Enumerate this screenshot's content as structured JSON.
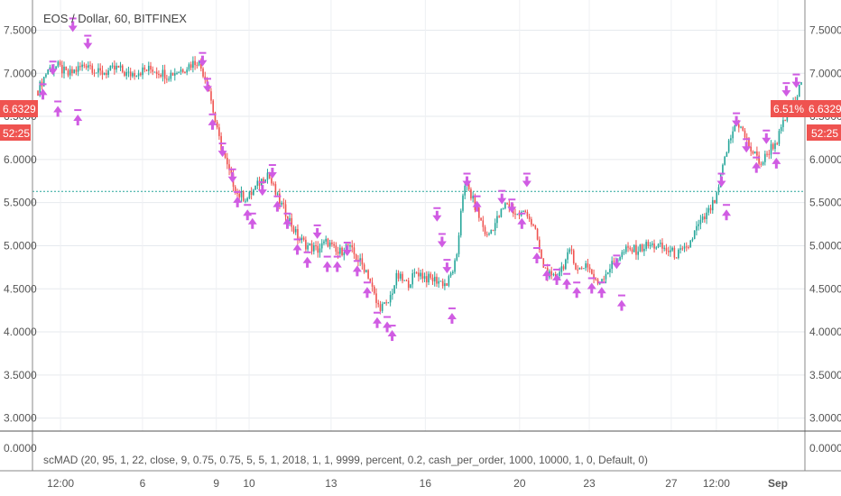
{
  "chart_data": {
    "type": "candlestick",
    "title": "EOS / Dollar, 60, BITFINEX",
    "indicator_label": "scMAD (20, 95, 1, 22, close, 9, 0.75, 0.75, 5, 5, 1, 2018, 1, 1, 9999, percent, 0.2, cash_per_order, 1000, 10000, 1, 0, Default, 0)",
    "y_ticks": [
      "7.5000",
      "7.0000",
      "6.5000",
      "6.0000",
      "5.5000",
      "5.0000",
      "4.5000",
      "4.0000",
      "3.5000",
      "3.0000"
    ],
    "indicator_tick": "0.0000",
    "x_ticks": [
      "12:00",
      "6",
      "9",
      "10",
      "13",
      "16",
      "20",
      "23",
      "27",
      "12:00",
      "Sep"
    ],
    "ylim": [
      2.85,
      7.85
    ],
    "last_price": "6.6329",
    "countdown": "52:25",
    "strategy_pct": "6.51%",
    "dotted_level": 5.63,
    "grid": true,
    "colors": {
      "up": "#26a69a",
      "down": "#ef5350",
      "signal": "#d05ce3",
      "tag": "#ef5350",
      "level": "#26a69a"
    },
    "price_path": [
      [
        0,
        6.8
      ],
      [
        2,
        7.05
      ],
      [
        4,
        7.08
      ],
      [
        6,
        6.98
      ],
      [
        8,
        7.05
      ],
      [
        10,
        7.12
      ],
      [
        12,
        7.0
      ],
      [
        14,
        7.02
      ],
      [
        16,
        7.06
      ],
      [
        18,
        6.98
      ],
      [
        20,
        7.02
      ],
      [
        23,
        7.05
      ],
      [
        26,
        6.98
      ],
      [
        29,
        7.05
      ],
      [
        32,
        7.15
      ],
      [
        34,
        6.9
      ],
      [
        36,
        6.3
      ],
      [
        38,
        5.9
      ],
      [
        40,
        5.6
      ],
      [
        42,
        5.55
      ],
      [
        44,
        5.7
      ],
      [
        46,
        5.85
      ],
      [
        48,
        5.55
      ],
      [
        50,
        5.35
      ],
      [
        52,
        5.1
      ],
      [
        54,
        5.0
      ],
      [
        56,
        4.95
      ],
      [
        58,
        5.05
      ],
      [
        60,
        4.9
      ],
      [
        62,
        5.0
      ],
      [
        64,
        4.85
      ],
      [
        66,
        4.7
      ],
      [
        67,
        4.5
      ],
      [
        68,
        4.3
      ],
      [
        70,
        4.3
      ],
      [
        72,
        4.65
      ],
      [
        74,
        4.55
      ],
      [
        76,
        4.7
      ],
      [
        78,
        4.62
      ],
      [
        80,
        4.6
      ],
      [
        82,
        4.55
      ],
      [
        84,
        4.85
      ],
      [
        85,
        5.6
      ],
      [
        86,
        5.7
      ],
      [
        88,
        5.4
      ],
      [
        90,
        5.1
      ],
      [
        92,
        5.3
      ],
      [
        94,
        5.5
      ],
      [
        96,
        5.35
      ],
      [
        98,
        5.4
      ],
      [
        100,
        5.1
      ],
      [
        101,
        4.8
      ],
      [
        103,
        4.6
      ],
      [
        105,
        4.75
      ],
      [
        107,
        4.95
      ],
      [
        108,
        4.7
      ],
      [
        110,
        4.8
      ],
      [
        112,
        4.55
      ],
      [
        114,
        4.7
      ],
      [
        116,
        4.85
      ],
      [
        118,
        4.95
      ],
      [
        120,
        4.95
      ],
      [
        122,
        5.0
      ],
      [
        124,
        5.0
      ],
      [
        126,
        4.95
      ],
      [
        128,
        4.9
      ],
      [
        130,
        4.95
      ],
      [
        132,
        5.2
      ],
      [
        134,
        5.35
      ],
      [
        136,
        5.55
      ],
      [
        138,
        6.1
      ],
      [
        140,
        6.45
      ],
      [
        141,
        6.35
      ],
      [
        143,
        6.1
      ],
      [
        145,
        5.95
      ],
      [
        147,
        6.15
      ],
      [
        148,
        6.2
      ],
      [
        150,
        6.5
      ],
      [
        152,
        6.7
      ],
      [
        153,
        6.9
      ]
    ],
    "signals": [
      {
        "t": 1,
        "p": 6.8,
        "dir": "up"
      },
      {
        "t": 3,
        "p": 7.0,
        "dir": "down"
      },
      {
        "t": 4,
        "p": 6.6,
        "dir": "up"
      },
      {
        "t": 7,
        "p": 7.5,
        "dir": "down"
      },
      {
        "t": 8,
        "p": 6.5,
        "dir": "up"
      },
      {
        "t": 10,
        "p": 7.3,
        "dir": "down"
      },
      {
        "t": 33,
        "p": 7.1,
        "dir": "down"
      },
      {
        "t": 34,
        "p": 6.8,
        "dir": "down"
      },
      {
        "t": 35,
        "p": 6.45,
        "dir": "up"
      },
      {
        "t": 37,
        "p": 6.05,
        "dir": "down"
      },
      {
        "t": 39,
        "p": 5.75,
        "dir": "down"
      },
      {
        "t": 40,
        "p": 5.55,
        "dir": "up"
      },
      {
        "t": 42,
        "p": 5.4,
        "dir": "up"
      },
      {
        "t": 43,
        "p": 5.3,
        "dir": "up"
      },
      {
        "t": 45,
        "p": 5.6,
        "dir": "down"
      },
      {
        "t": 47,
        "p": 5.8,
        "dir": "down"
      },
      {
        "t": 48,
        "p": 5.5,
        "dir": "up"
      },
      {
        "t": 50,
        "p": 5.3,
        "dir": "up"
      },
      {
        "t": 52,
        "p": 5.0,
        "dir": "up"
      },
      {
        "t": 54,
        "p": 4.85,
        "dir": "up"
      },
      {
        "t": 56,
        "p": 5.1,
        "dir": "down"
      },
      {
        "t": 58,
        "p": 4.8,
        "dir": "up"
      },
      {
        "t": 60,
        "p": 4.8,
        "dir": "up"
      },
      {
        "t": 62,
        "p": 4.9,
        "dir": "down"
      },
      {
        "t": 64,
        "p": 4.75,
        "dir": "up"
      },
      {
        "t": 66,
        "p": 4.5,
        "dir": "up"
      },
      {
        "t": 68,
        "p": 4.15,
        "dir": "up"
      },
      {
        "t": 70,
        "p": 4.1,
        "dir": "up"
      },
      {
        "t": 71,
        "p": 4.0,
        "dir": "up"
      },
      {
        "t": 80,
        "p": 5.3,
        "dir": "down"
      },
      {
        "t": 81,
        "p": 5.0,
        "dir": "down"
      },
      {
        "t": 82,
        "p": 4.7,
        "dir": "down"
      },
      {
        "t": 83,
        "p": 4.2,
        "dir": "up"
      },
      {
        "t": 86,
        "p": 5.7,
        "dir": "down"
      },
      {
        "t": 88,
        "p": 5.5,
        "dir": "up"
      },
      {
        "t": 93,
        "p": 5.5,
        "dir": "down"
      },
      {
        "t": 95,
        "p": 5.4,
        "dir": "down"
      },
      {
        "t": 97,
        "p": 5.3,
        "dir": "up"
      },
      {
        "t": 98,
        "p": 5.7,
        "dir": "down"
      },
      {
        "t": 100,
        "p": 4.9,
        "dir": "up"
      },
      {
        "t": 102,
        "p": 4.7,
        "dir": "up"
      },
      {
        "t": 104,
        "p": 4.65,
        "dir": "up"
      },
      {
        "t": 106,
        "p": 4.6,
        "dir": "up"
      },
      {
        "t": 108,
        "p": 4.5,
        "dir": "up"
      },
      {
        "t": 111,
        "p": 4.55,
        "dir": "up"
      },
      {
        "t": 113,
        "p": 4.5,
        "dir": "up"
      },
      {
        "t": 116,
        "p": 4.75,
        "dir": "down"
      },
      {
        "t": 117,
        "p": 4.35,
        "dir": "up"
      },
      {
        "t": 137,
        "p": 5.7,
        "dir": "down"
      },
      {
        "t": 138,
        "p": 5.4,
        "dir": "up"
      },
      {
        "t": 140,
        "p": 6.4,
        "dir": "down"
      },
      {
        "t": 142,
        "p": 6.1,
        "dir": "down"
      },
      {
        "t": 144,
        "p": 5.95,
        "dir": "up"
      },
      {
        "t": 146,
        "p": 6.2,
        "dir": "down"
      },
      {
        "t": 148,
        "p": 6.0,
        "dir": "up"
      },
      {
        "t": 150,
        "p": 6.75,
        "dir": "down"
      },
      {
        "t": 152,
        "p": 6.85,
        "dir": "down"
      }
    ]
  }
}
